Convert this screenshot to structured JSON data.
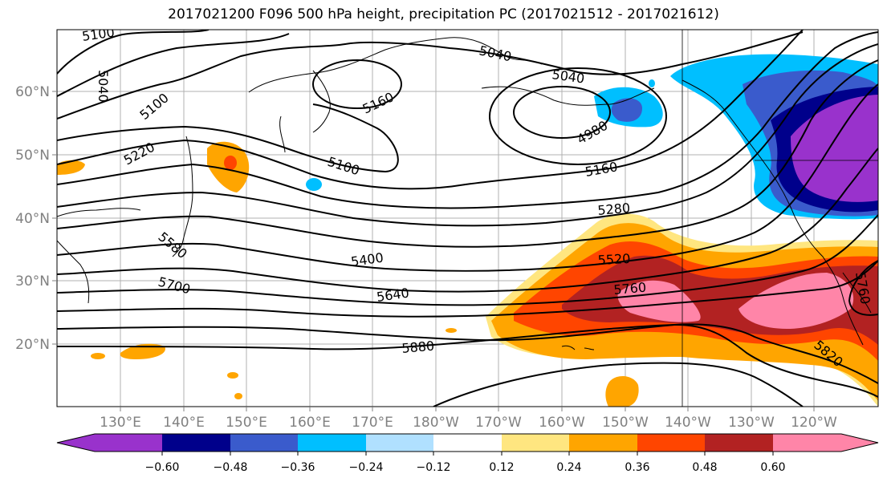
{
  "title": "2017021200 F096 500 hPa height, precipitation PC (2017021512 - 2017021612)",
  "lat_ticks": [
    "60°N",
    "50°N",
    "40°N",
    "30°N",
    "20°N"
  ],
  "lon_ticks": [
    "130°E",
    "140°E",
    "150°E",
    "160°E",
    "170°E",
    "180°W",
    "170°W",
    "160°W",
    "150°W",
    "140°W",
    "130°W",
    "120°W"
  ],
  "contour_labels": [
    "5100",
    "5040",
    "5100",
    "5220",
    "5160",
    "5040",
    "5040",
    "4980",
    "5100",
    "5160",
    "5280",
    "5400",
    "5520",
    "5580",
    "5640",
    "5700",
    "5760",
    "5880",
    "5820",
    "5760"
  ],
  "colorbar": {
    "colors": [
      "#9932cc",
      "#00008b",
      "#3a5bcc",
      "#00bfff",
      "#b0e0ff",
      "#ffffff",
      "#ffe680",
      "#ffa500",
      "#ff4500",
      "#b22222",
      "#ff85a8"
    ],
    "ticks": [
      "−0.60",
      "−0.48",
      "−0.36",
      "−0.24",
      "−0.12",
      "0.12",
      "0.24",
      "0.36",
      "0.48",
      "0.60"
    ]
  }
}
